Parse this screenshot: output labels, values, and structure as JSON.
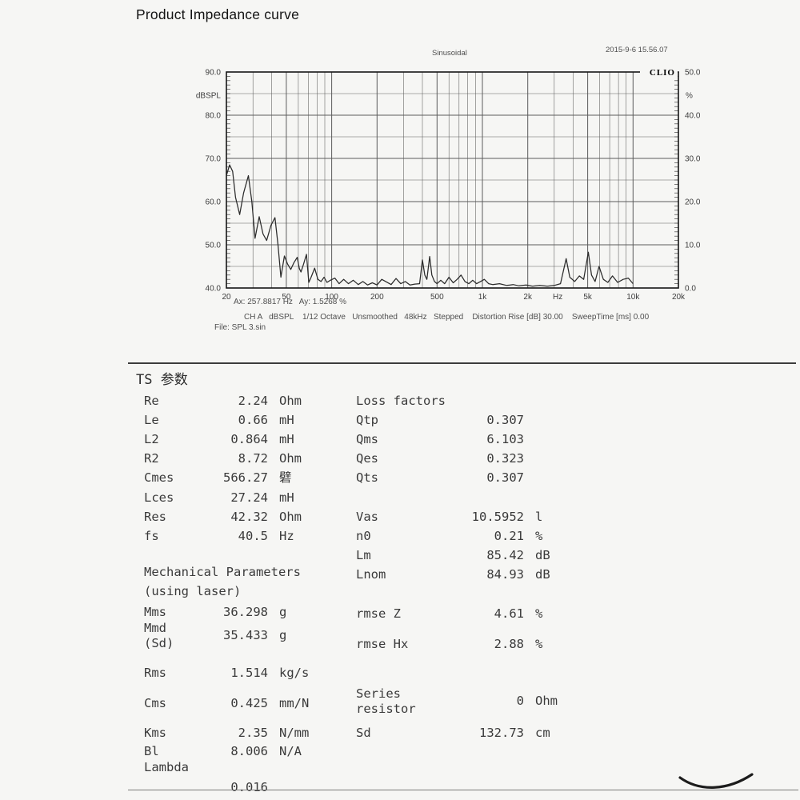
{
  "page": {
    "title": "Product Impedance curve"
  },
  "chart_data": {
    "type": "line",
    "title": "Sinusoidal",
    "timestamp": "2015-9-6 15.56.07",
    "logo": "CLIO",
    "cursor_text": "Ax: 257.8817 Hz   Ay: 1.5268 %",
    "settings_line": "CH A   dBSPL    1/12 Octave   Unsmoothed   48kHz   Stepped    Distortion Rise [dB] 30.00    SweepTime [ms] 0.00",
    "file_line": "File: SPL 3.sin",
    "x_axis": {
      "scale": "log",
      "min": 20,
      "max": 20000,
      "unit": "Hz",
      "tick_labels": [
        "20",
        "50",
        "100",
        "200",
        "500",
        "1k",
        "2k",
        "Hz",
        "5k",
        "10k",
        "20k"
      ],
      "tick_values": [
        20,
        50,
        100,
        200,
        500,
        1000,
        2000,
        3160,
        5000,
        10000,
        20000
      ]
    },
    "y_left": {
      "label": "dBSPL",
      "min": 40,
      "max": 90,
      "ticks": [
        90,
        80,
        70,
        60,
        50,
        40
      ],
      "grid_step": 5
    },
    "y_right": {
      "label": "%",
      "min": 0,
      "max": 50,
      "ticks": [
        50,
        40,
        30,
        20,
        10,
        0
      ]
    },
    "grid": true,
    "legend": null,
    "series": [
      {
        "name": "CH A distortion",
        "points": [
          [
            20,
            66.0
          ],
          [
            21,
            68.5
          ],
          [
            22,
            67.0
          ],
          [
            23,
            61.0
          ],
          [
            24.5,
            57.0
          ],
          [
            26,
            62.0
          ],
          [
            28,
            66.0
          ],
          [
            29.5,
            60.0
          ],
          [
            31,
            51.5
          ],
          [
            33,
            56.5
          ],
          [
            35,
            52.5
          ],
          [
            37,
            51.0
          ],
          [
            39.5,
            54.5
          ],
          [
            42,
            56.3
          ],
          [
            44,
            50.0
          ],
          [
            46,
            42.5
          ],
          [
            48.5,
            47.4
          ],
          [
            51,
            45.5
          ],
          [
            53.5,
            44.3
          ],
          [
            56,
            45.8
          ],
          [
            59,
            47.1
          ],
          [
            61,
            44.5
          ],
          [
            62.5,
            43.7
          ],
          [
            65,
            45.5
          ],
          [
            68,
            47.8
          ],
          [
            70.5,
            41.3
          ],
          [
            73,
            42.5
          ],
          [
            77,
            44.6
          ],
          [
            81,
            42.0
          ],
          [
            85,
            41.5
          ],
          [
            89,
            42.5
          ],
          [
            93,
            41.3
          ],
          [
            98,
            41.8
          ],
          [
            105,
            42.3
          ],
          [
            112,
            41.0
          ],
          [
            120,
            42.0
          ],
          [
            129,
            41.0
          ],
          [
            139,
            41.8
          ],
          [
            150,
            40.8
          ],
          [
            161,
            41.5
          ],
          [
            173,
            40.7
          ],
          [
            186,
            41.2
          ],
          [
            200,
            40.7
          ],
          [
            215,
            42.0
          ],
          [
            231,
            41.4
          ],
          [
            248,
            40.8
          ],
          [
            267,
            42.2
          ],
          [
            287,
            41.0
          ],
          [
            308,
            41.5
          ],
          [
            331,
            40.7
          ],
          [
            356,
            40.9
          ],
          [
            383,
            41.0
          ],
          [
            400,
            46.5
          ],
          [
            415,
            43.0
          ],
          [
            428,
            42.0
          ],
          [
            447,
            47.3
          ],
          [
            462,
            43.0
          ],
          [
            481,
            41.5
          ],
          [
            500,
            41.0
          ],
          [
            530,
            41.8
          ],
          [
            562,
            41.0
          ],
          [
            600,
            42.5
          ],
          [
            640,
            41.2
          ],
          [
            680,
            42.0
          ],
          [
            722,
            43.0
          ],
          [
            766,
            41.5
          ],
          [
            813,
            41.0
          ],
          [
            863,
            41.8
          ],
          [
            916,
            41.0
          ],
          [
            972,
            41.5
          ],
          [
            1030,
            42.0
          ],
          [
            1100,
            41.0
          ],
          [
            1170,
            40.8
          ],
          [
            1300,
            41.0
          ],
          [
            1450,
            40.6
          ],
          [
            1600,
            40.8
          ],
          [
            1750,
            40.5
          ],
          [
            1950,
            40.7
          ],
          [
            2150,
            40.4
          ],
          [
            2400,
            40.6
          ],
          [
            2700,
            40.4
          ],
          [
            3000,
            40.6
          ],
          [
            3300,
            41.0
          ],
          [
            3600,
            46.8
          ],
          [
            3800,
            42.5
          ],
          [
            4100,
            41.5
          ],
          [
            4400,
            42.8
          ],
          [
            4700,
            42.0
          ],
          [
            5050,
            48.3
          ],
          [
            5300,
            43.0
          ],
          [
            5600,
            41.5
          ],
          [
            5950,
            45.0
          ],
          [
            6350,
            42.0
          ],
          [
            6800,
            41.3
          ],
          [
            7300,
            42.8
          ],
          [
            7900,
            41.3
          ],
          [
            8600,
            42.0
          ],
          [
            9300,
            42.3
          ],
          [
            10000,
            41.0
          ]
        ]
      }
    ]
  },
  "ts": {
    "heading": "TS 参数",
    "left": [
      {
        "label": "Re",
        "value": "2.24",
        "unit": "Ohm"
      },
      {
        "label": "Le",
        "value": "0.66",
        "unit": "mH"
      },
      {
        "label": "L2",
        "value": "0.864",
        "unit": "mH"
      },
      {
        "label": "R2",
        "value": "8.72",
        "unit": "Ohm"
      },
      {
        "label": "Cmes",
        "value": "566.27",
        "unit": "礕"
      },
      {
        "label": "Lces",
        "value": "27.24",
        "unit": "mH"
      },
      {
        "label": "Res",
        "value": "42.32",
        "unit": "Ohm"
      },
      {
        "label": "fs",
        "value": "40.5",
        "unit": "Hz"
      },
      {
        "label": "Mechanical Parameters",
        "value": "",
        "unit": ""
      },
      {
        "label": "(using laser)",
        "value": "",
        "unit": ""
      },
      {
        "label": "Mms",
        "value": "36.298",
        "unit": "g"
      },
      {
        "label": "Mmd\n(Sd)",
        "value": "35.433",
        "unit": "g"
      },
      {
        "label": "Rms",
        "value": "1.514",
        "unit": "kg/s"
      },
      {
        "label": "Cms",
        "value": "0.425",
        "unit": "mm/N"
      },
      {
        "label": "Kms",
        "value": "2.35",
        "unit": "N/mm"
      },
      {
        "label": "Bl",
        "value": "8.006",
        "unit": "N/A"
      },
      {
        "label": "Lambda",
        "value": "0.016",
        "unit": ""
      }
    ],
    "right": [
      {
        "label": "Loss factors",
        "value": "",
        "unit": ""
      },
      {
        "label": "Qtp",
        "value": "0.307",
        "unit": ""
      },
      {
        "label": "Qms",
        "value": "6.103",
        "unit": ""
      },
      {
        "label": "Qes",
        "value": "0.323",
        "unit": ""
      },
      {
        "label": "Qts",
        "value": "0.307",
        "unit": ""
      },
      {
        "label": "Vas",
        "value": "10.5952",
        "unit": "l"
      },
      {
        "label": "n0",
        "value": "0.21",
        "unit": "%"
      },
      {
        "label": "Lm",
        "value": "85.42",
        "unit": "dB"
      },
      {
        "label": "Lnom",
        "value": "84.93",
        "unit": "dB"
      },
      {
        "label": "rmse Z",
        "value": "4.61",
        "unit": "%"
      },
      {
        "label": "rmse Hx",
        "value": "2.88",
        "unit": "%"
      },
      {
        "label": "Series\nresistor",
        "value": "0",
        "unit": "Ohm"
      },
      {
        "label": "Sd",
        "value": "132.73",
        "unit": "cm"
      }
    ]
  }
}
